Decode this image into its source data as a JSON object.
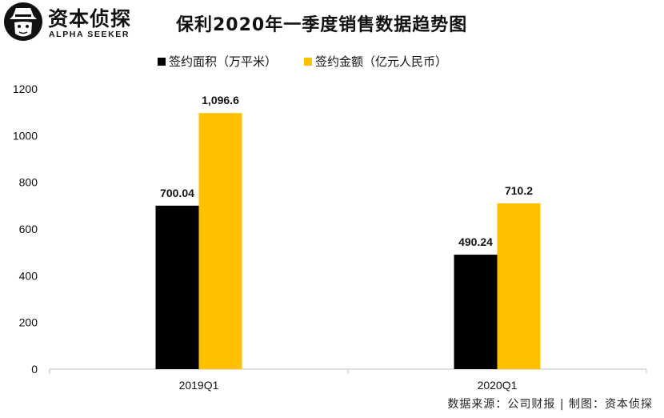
{
  "brand": {
    "name_cn": "资本侦探",
    "name_en": "ALPHA SEEKER"
  },
  "chart_data": {
    "type": "bar",
    "title": "保利2020年一季度销售数据趋势图",
    "categories": [
      "2019Q1",
      "2020Q1"
    ],
    "series": [
      {
        "name": "签约面积（万平米）",
        "color": "#000000",
        "values": [
          700.04,
          490.24
        ],
        "labels": [
          "700.04",
          "490.24"
        ]
      },
      {
        "name": "签约金额（亿元人民币）",
        "color": "#FFC000",
        "values": [
          1096.6,
          710.2
        ],
        "labels": [
          "1,096.6",
          "710.2"
        ]
      }
    ],
    "ylim": [
      0,
      1200
    ],
    "yticks": [
      0,
      200,
      400,
      600,
      800,
      1000,
      1200
    ],
    "grid": false,
    "legend_position": "top"
  },
  "footer": "数据来源：公司财报 | 制图：资本侦探"
}
